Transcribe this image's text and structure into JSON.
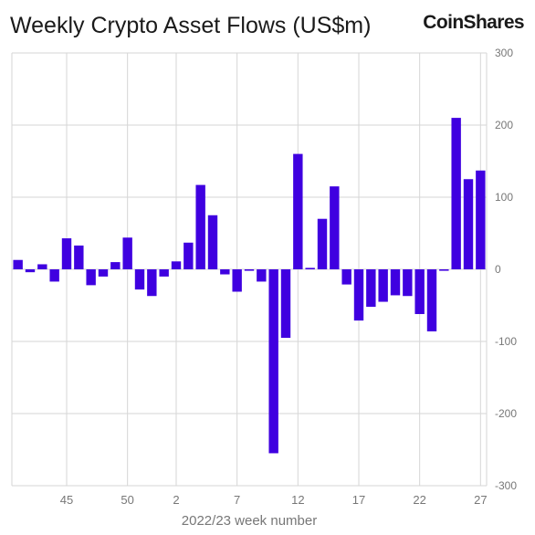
{
  "header": {
    "title": "Weekly Crypto Asset Flows (US$m)",
    "brand": "CoinShares"
  },
  "chart_data": {
    "type": "bar",
    "xlabel": "2022/23 week number",
    "ylabel": "",
    "ylim": [
      -300,
      300
    ],
    "yticks": [
      300,
      200,
      100,
      0,
      -100,
      -200,
      -300
    ],
    "xtick_labels": [
      "45",
      "50",
      "2",
      "7",
      "12",
      "17",
      "22",
      "27"
    ],
    "grid": true,
    "bar_color": "#3f00e0",
    "categories": [
      "41",
      "42",
      "43",
      "44",
      "45",
      "46",
      "47",
      "48",
      "49",
      "50",
      "51",
      "52",
      "1",
      "2",
      "3",
      "4",
      "5",
      "6",
      "7",
      "8",
      "9",
      "10",
      "11",
      "12",
      "13",
      "14",
      "15",
      "16",
      "17",
      "18",
      "19",
      "20",
      "21",
      "22",
      "23",
      "24",
      "25",
      "26",
      "27"
    ],
    "values": [
      13,
      -4,
      7,
      -17,
      43,
      33,
      -22,
      -10,
      10,
      44,
      -28,
      -37,
      -10,
      11,
      37,
      117,
      75,
      -7,
      -31,
      -2,
      -17,
      -255,
      -95,
      160,
      2,
      70,
      115,
      -21,
      -71,
      -52,
      -45,
      -36,
      -37,
      -62,
      -86,
      -2,
      210,
      125,
      137
    ]
  }
}
